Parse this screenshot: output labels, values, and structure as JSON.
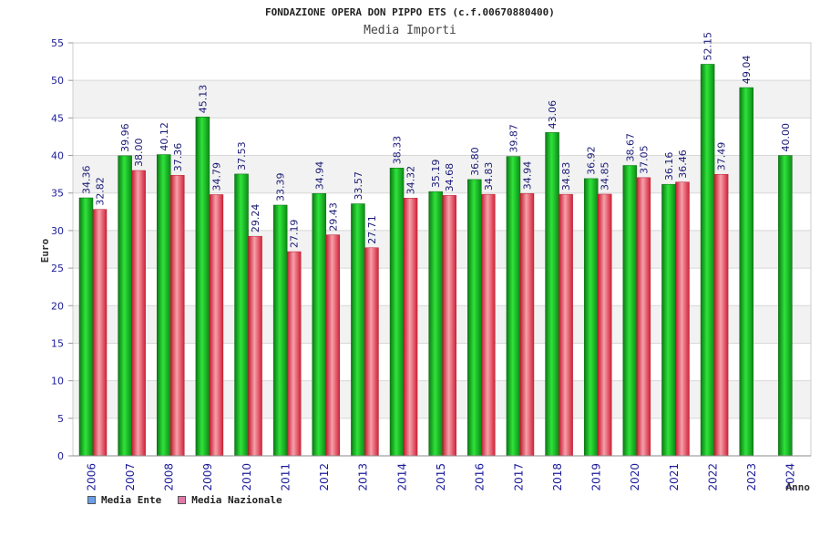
{
  "chart_data": {
    "type": "bar",
    "title": "FONDAZIONE OPERA DON PIPPO ETS (c.f.00670880400)",
    "subtitle": "Media Importi",
    "ylabel": "Euro",
    "xlabel": "Anno",
    "ylim": [
      0,
      55
    ],
    "yticks": [
      "0",
      "5",
      "10",
      "15",
      "20",
      "25",
      "30",
      "35",
      "40",
      "45",
      "50",
      "55"
    ],
    "categories": [
      "2006",
      "2007",
      "2008",
      "2009",
      "2010",
      "2011",
      "2012",
      "2013",
      "2014",
      "2015",
      "2016",
      "2017",
      "2018",
      "2019",
      "2020",
      "2021",
      "2022",
      "2023",
      "2024"
    ],
    "series": [
      {
        "name": "Media Ente",
        "color": "#12a51f",
        "legend_color": "#6a9fe8",
        "values": [
          34.36,
          39.96,
          40.12,
          45.13,
          37.53,
          33.39,
          34.94,
          33.57,
          38.33,
          35.19,
          36.8,
          39.87,
          43.06,
          36.92,
          38.67,
          36.16,
          52.15,
          49.04,
          40.0
        ],
        "labels": [
          "34.36",
          "39.96",
          "40.12",
          "45.13",
          "37.53",
          "33.39",
          "34.94",
          "33.57",
          "38.33",
          "35.19",
          "36.80",
          "39.87",
          "43.06",
          "36.92",
          "38.67",
          "36.16",
          "52.15",
          "49.04",
          "40.00"
        ]
      },
      {
        "name": "Media Nazionale",
        "color": "#e23a4c",
        "legend_color": "#e07aa8",
        "values": [
          32.82,
          38.0,
          37.36,
          34.79,
          29.24,
          27.19,
          29.43,
          27.71,
          34.32,
          34.68,
          34.83,
          34.94,
          34.83,
          34.85,
          37.05,
          36.46,
          37.49,
          null,
          null
        ],
        "labels": [
          "32.82",
          "38.00",
          "37.36",
          "34.79",
          "29.24",
          "27.19",
          "29.43",
          "27.71",
          "34.32",
          "34.68",
          "34.83",
          "34.94",
          "34.83",
          "34.85",
          "37.05",
          "36.46",
          "37.49",
          null,
          null
        ]
      }
    ],
    "grid": true,
    "legend_position": "bottom-left"
  }
}
